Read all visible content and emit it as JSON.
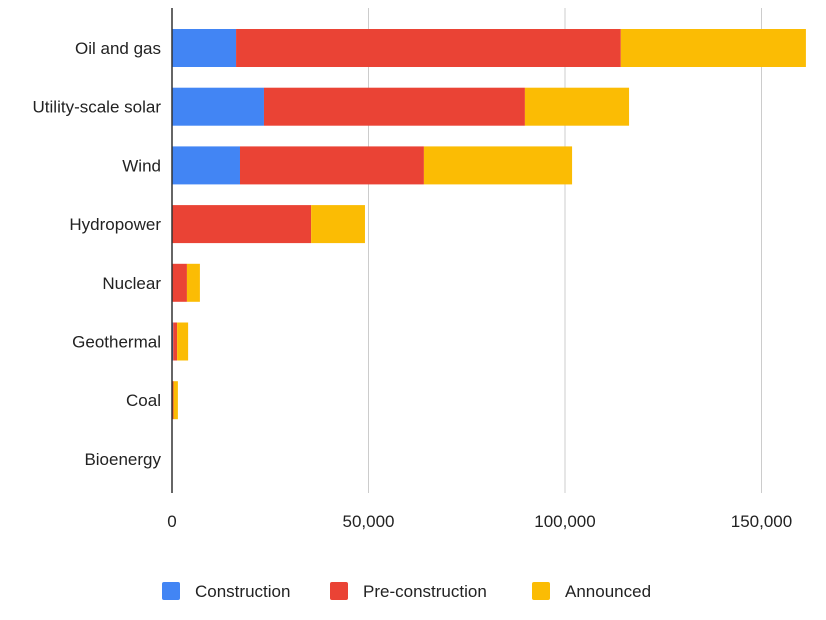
{
  "chart_data": {
    "type": "bar",
    "orientation": "horizontal",
    "stacked": true,
    "title": "",
    "xlabel": "",
    "ylabel": "",
    "xlim": [
      0,
      162000
    ],
    "x_ticks": [
      0,
      50000,
      100000,
      150000
    ],
    "x_tick_labels": [
      "0",
      "50,000",
      "100,000",
      "150,000"
    ],
    "grid": "vertical",
    "legend_position": "bottom",
    "categories": [
      "Oil and gas",
      "Utility-scale solar",
      "Wind",
      "Hydropower",
      "Nuclear",
      "Geothermal",
      "Coal",
      "Bioenergy"
    ],
    "series": [
      {
        "name": "Construction",
        "color": "#4285f4",
        "values": [
          16300,
          23400,
          17300,
          0,
          0,
          300,
          0,
          0
        ]
      },
      {
        "name": "Pre-construction",
        "color": "#ea4335",
        "values": [
          97900,
          66400,
          46800,
          35400,
          3800,
          1000,
          400,
          0
        ]
      },
      {
        "name": "Announced",
        "color": "#fbbc04",
        "values": [
          47100,
          26500,
          37700,
          13700,
          3300,
          2800,
          1100,
          0
        ]
      }
    ]
  }
}
